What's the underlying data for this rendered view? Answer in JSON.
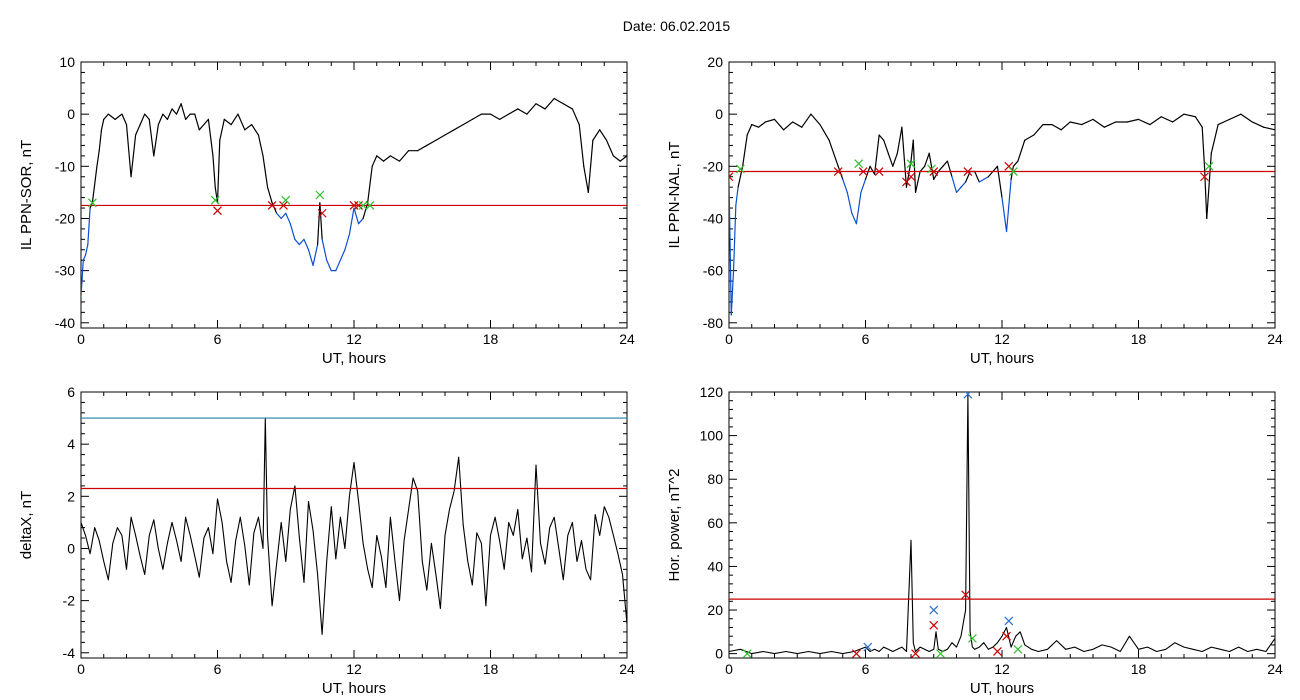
{
  "figure": {
    "title": "Date:  06.02.2015"
  },
  "colors": {
    "trace": "#000000",
    "below": "#0a4fd0",
    "threshold": "#cc0000",
    "threshold_alt": "#1f7fa6",
    "marker_red": "#cc0000",
    "marker_green": "#2ec02e",
    "marker_blue": "#2a6fd0"
  },
  "chart_data": [
    {
      "id": "ppn-sor",
      "type": "line",
      "ylabel": "IL PPN-SOR, nT",
      "xlabel": "UT, hours",
      "xlim": [
        0,
        24
      ],
      "ylim": [
        -41,
        10
      ],
      "xticks": [
        0,
        6,
        12,
        18,
        24
      ],
      "yticks": [
        -40,
        -30,
        -20,
        -10,
        0,
        10
      ],
      "threshold": -17.5,
      "series": [
        {
          "x": [
            0,
            0.1,
            0.2,
            0.3,
            0.4,
            0.5,
            0.7,
            0.8,
            0.9,
            1.0,
            1.2,
            1.5,
            1.8,
            2.0,
            2.2,
            2.4,
            2.6,
            2.8,
            3.0,
            3.2,
            3.4,
            3.6,
            3.8,
            4.0,
            4.2,
            4.4,
            4.6,
            4.8,
            5.0,
            5.2,
            5.4,
            5.6,
            5.8,
            5.9,
            6.0,
            6.1,
            6.3,
            6.6,
            6.9,
            7.2,
            7.5,
            7.8,
            8.0,
            8.2,
            8.4,
            8.6,
            8.8,
            9.0,
            9.2,
            9.4,
            9.6,
            9.8,
            10.0,
            10.2,
            10.4,
            10.5,
            10.6,
            10.8,
            11.0,
            11.2,
            11.4,
            11.6,
            11.8,
            12.0,
            12.2,
            12.4,
            12.6,
            12.8,
            13.0,
            13.3,
            13.6,
            14.0,
            14.4,
            14.8,
            15.2,
            15.6,
            16.0,
            16.4,
            16.8,
            17.2,
            17.6,
            18.0,
            18.4,
            18.8,
            19.2,
            19.6,
            20.0,
            20.4,
            20.8,
            21.2,
            21.6,
            21.9,
            22.1,
            22.3,
            22.5,
            22.8,
            23.1,
            23.4,
            23.7,
            24.0
          ],
          "y": [
            -35,
            -28,
            -27,
            -25,
            -18,
            -17,
            -10,
            -7,
            -3,
            -1,
            0,
            -1,
            0,
            -2,
            -12,
            -4,
            -2,
            0,
            -1,
            -8,
            -2,
            0,
            -1,
            1,
            0,
            2,
            -1,
            0,
            0,
            -3,
            -2,
            -1,
            -8,
            -14,
            -17,
            -5,
            -1,
            -2,
            0,
            -3,
            -2,
            -4,
            -8,
            -14,
            -17,
            -19,
            -20,
            -19,
            -21,
            -24,
            -25,
            -24,
            -26,
            -29,
            -25,
            -17,
            -24,
            -28,
            -30,
            -30,
            -28,
            -26,
            -23,
            -18,
            -21,
            -20,
            -17,
            -10,
            -8,
            -9,
            -8,
            -9,
            -7,
            -7,
            -6,
            -5,
            -4,
            -3,
            -2,
            -1,
            0,
            0,
            -1,
            0,
            1,
            0,
            2,
            1,
            3,
            2,
            1,
            -2,
            -10,
            -15,
            -5,
            -3,
            -5,
            -8,
            -9,
            -8
          ]
        }
      ],
      "markers": [
        {
          "x": 0.5,
          "y": -17,
          "color": "green"
        },
        {
          "x": 5.9,
          "y": -16.5,
          "color": "green"
        },
        {
          "x": 6.0,
          "y": -18.5,
          "color": "red"
        },
        {
          "x": 8.4,
          "y": -17.5,
          "color": "red"
        },
        {
          "x": 8.9,
          "y": -17.5,
          "color": "red"
        },
        {
          "x": 9.0,
          "y": -16.5,
          "color": "green"
        },
        {
          "x": 10.5,
          "y": -15.5,
          "color": "green"
        },
        {
          "x": 10.6,
          "y": -19,
          "color": "red"
        },
        {
          "x": 12.0,
          "y": -17.5,
          "color": "red"
        },
        {
          "x": 12.2,
          "y": -17.5,
          "color": "red"
        },
        {
          "x": 12.4,
          "y": -17.5,
          "color": "green"
        },
        {
          "x": 12.7,
          "y": -17.5,
          "color": "green"
        }
      ]
    },
    {
      "id": "ppn-nal",
      "type": "line",
      "ylabel": "IL PPN-NAL, nT",
      "xlabel": "UT, hours",
      "xlim": [
        0,
        24
      ],
      "ylim": [
        -82,
        20
      ],
      "xticks": [
        0,
        6,
        12,
        18,
        24
      ],
      "yticks": [
        -80,
        -60,
        -40,
        -20,
        0,
        20
      ],
      "threshold": -22,
      "series": [
        {
          "x": [
            0,
            0.1,
            0.2,
            0.3,
            0.4,
            0.6,
            0.8,
            1.0,
            1.3,
            1.6,
            2.0,
            2.4,
            2.8,
            3.2,
            3.6,
            4.0,
            4.4,
            4.8,
            5.0,
            5.2,
            5.4,
            5.6,
            5.8,
            6.0,
            6.2,
            6.4,
            6.6,
            6.8,
            7.0,
            7.2,
            7.4,
            7.6,
            7.8,
            8.0,
            8.1,
            8.2,
            8.4,
            8.6,
            8.8,
            9.0,
            9.2,
            9.4,
            9.6,
            9.8,
            10.0,
            10.2,
            10.4,
            10.6,
            10.8,
            11.0,
            11.2,
            11.4,
            11.6,
            11.8,
            12.0,
            12.2,
            12.4,
            12.5,
            12.7,
            13.0,
            13.4,
            13.8,
            14.2,
            14.6,
            15.0,
            15.5,
            16.0,
            16.5,
            17.0,
            17.5,
            18.0,
            18.5,
            19.0,
            19.5,
            20.0,
            20.5,
            20.8,
            20.9,
            21.0,
            21.2,
            21.5,
            22.0,
            22.5,
            23.0,
            23.5,
            24.0
          ],
          "y": [
            -25,
            -77,
            -60,
            -35,
            -28,
            -20,
            -8,
            -4,
            -5,
            -3,
            -2,
            -6,
            -3,
            -5,
            0,
            -4,
            -10,
            -20,
            -25,
            -30,
            -38,
            -42,
            -30,
            -25,
            -20,
            -23,
            -8,
            -10,
            -15,
            -20,
            -15,
            -5,
            -28,
            -18,
            -10,
            -30,
            -22,
            -20,
            -15,
            -25,
            -22,
            -20,
            -18,
            -24,
            -30,
            -28,
            -26,
            -22,
            -22,
            -26,
            -25,
            -24,
            -22,
            -20,
            -32,
            -45,
            -25,
            -20,
            -18,
            -10,
            -8,
            -4,
            -4,
            -6,
            -3,
            -4,
            -2,
            -5,
            -3,
            -3,
            -2,
            -4,
            -1,
            -3,
            0,
            -1,
            -5,
            -20,
            -40,
            -15,
            -4,
            -2,
            0,
            -3,
            -5,
            -6
          ]
        }
      ],
      "markers": [
        {
          "x": 0.0,
          "y": -24,
          "color": "red"
        },
        {
          "x": 0.5,
          "y": -21,
          "color": "green"
        },
        {
          "x": 4.8,
          "y": -22,
          "color": "red"
        },
        {
          "x": 5.7,
          "y": -19,
          "color": "green"
        },
        {
          "x": 5.9,
          "y": -22,
          "color": "red"
        },
        {
          "x": 6.6,
          "y": -22,
          "color": "red"
        },
        {
          "x": 7.8,
          "y": -26,
          "color": "red"
        },
        {
          "x": 8.0,
          "y": -24,
          "color": "red"
        },
        {
          "x": 8.0,
          "y": -19,
          "color": "green"
        },
        {
          "x": 8.9,
          "y": -21,
          "color": "green"
        },
        {
          "x": 9.0,
          "y": -22,
          "color": "red"
        },
        {
          "x": 10.5,
          "y": -22,
          "color": "red"
        },
        {
          "x": 12.3,
          "y": -20,
          "color": "red"
        },
        {
          "x": 12.5,
          "y": -22,
          "color": "green"
        },
        {
          "x": 20.9,
          "y": -24,
          "color": "red"
        },
        {
          "x": 21.1,
          "y": -20,
          "color": "green"
        }
      ]
    },
    {
      "id": "deltax",
      "type": "line",
      "ylabel": "deltaX, nT",
      "xlabel": "UT, hours",
      "xlim": [
        0,
        24
      ],
      "ylim": [
        -4.2,
        6
      ],
      "xticks": [
        0,
        6,
        12,
        18,
        24
      ],
      "yticks": [
        -4,
        -2,
        0,
        2,
        4,
        6
      ],
      "threshold": 2.3,
      "threshold_alt": 5.0,
      "series": [
        {
          "x": [
            0,
            0.2,
            0.4,
            0.6,
            0.8,
            1.0,
            1.2,
            1.4,
            1.6,
            1.8,
            2.0,
            2.2,
            2.4,
            2.6,
            2.8,
            3.0,
            3.2,
            3.4,
            3.6,
            3.8,
            4.0,
            4.2,
            4.4,
            4.6,
            4.8,
            5.0,
            5.2,
            5.4,
            5.6,
            5.8,
            6.0,
            6.2,
            6.4,
            6.6,
            6.8,
            7.0,
            7.2,
            7.4,
            7.6,
            7.8,
            8.0,
            8.1,
            8.2,
            8.4,
            8.6,
            8.8,
            9.0,
            9.2,
            9.4,
            9.6,
            9.8,
            10.0,
            10.2,
            10.4,
            10.6,
            10.8,
            11.0,
            11.2,
            11.4,
            11.6,
            11.8,
            12.0,
            12.2,
            12.4,
            12.6,
            12.8,
            13.0,
            13.2,
            13.4,
            13.6,
            13.8,
            14.0,
            14.2,
            14.4,
            14.6,
            14.8,
            15.0,
            15.2,
            15.4,
            15.6,
            15.8,
            16.0,
            16.2,
            16.4,
            16.6,
            16.8,
            17.0,
            17.2,
            17.4,
            17.6,
            17.8,
            18.0,
            18.2,
            18.4,
            18.6,
            18.8,
            19.0,
            19.2,
            19.4,
            19.6,
            19.8,
            20.0,
            20.2,
            20.4,
            20.6,
            20.8,
            21.0,
            21.2,
            21.4,
            21.6,
            21.8,
            22.0,
            22.2,
            22.4,
            22.6,
            22.8,
            23.0,
            23.2,
            23.4,
            23.6,
            23.8,
            24.0
          ],
          "y": [
            1.0,
            0.5,
            -0.2,
            0.8,
            0.3,
            -0.5,
            -1.2,
            0.2,
            0.8,
            0.5,
            -0.8,
            1.2,
            0.5,
            -0.3,
            -1.0,
            0.5,
            1.1,
            0.0,
            -0.8,
            0.2,
            1.0,
            0.3,
            -0.5,
            1.2,
            0.5,
            -0.3,
            -1.1,
            0.4,
            0.8,
            -0.2,
            1.9,
            1.0,
            -0.5,
            -1.3,
            0.3,
            1.2,
            0.1,
            -1.4,
            0.6,
            1.2,
            0.0,
            5.0,
            0.5,
            -2.2,
            -0.6,
            1.0,
            -0.5,
            1.5,
            2.4,
            0.4,
            -1.3,
            1.8,
            0.7,
            -1.0,
            -3.3,
            -0.5,
            1.6,
            -0.4,
            1.2,
            0.0,
            2.0,
            3.3,
            1.8,
            0.2,
            -0.8,
            -1.5,
            0.5,
            -0.3,
            -1.5,
            1.2,
            -0.5,
            -2.0,
            0.3,
            1.5,
            2.7,
            2.2,
            -0.5,
            -1.6,
            0.2,
            -1.0,
            -2.3,
            0.5,
            1.5,
            2.2,
            3.5,
            0.9,
            -0.5,
            -1.4,
            0.6,
            0.2,
            -2.2,
            0.5,
            1.2,
            0.3,
            -0.8,
            1.0,
            0.5,
            1.5,
            -0.4,
            0.4,
            -0.9,
            3.2,
            0.2,
            -0.6,
            0.8,
            1.2,
            0.0,
            -1.2,
            0.5,
            1.0,
            -0.5,
            0.3,
            -0.8,
            -1.2,
            1.3,
            0.5,
            1.6,
            1.2,
            0.5,
            -0.2,
            -1.0,
            -2.9
          ]
        }
      ],
      "markers": []
    },
    {
      "id": "hor-power",
      "type": "line",
      "ylabel": "Hor. power, nT^2",
      "xlabel": "UT, hours",
      "xlim": [
        0,
        24
      ],
      "ylim": [
        -2,
        120
      ],
      "xticks": [
        0,
        6,
        12,
        18,
        24
      ],
      "yticks": [
        0,
        20,
        40,
        60,
        80,
        100,
        120
      ],
      "threshold": 25,
      "series": [
        {
          "x": [
            0,
            0.5,
            1.0,
            1.5,
            2.0,
            2.5,
            3.0,
            3.5,
            4.0,
            4.5,
            5.0,
            5.5,
            6.0,
            6.2,
            6.4,
            6.6,
            6.8,
            7.0,
            7.2,
            7.4,
            7.6,
            7.8,
            8.0,
            8.1,
            8.2,
            8.3,
            8.4,
            8.6,
            8.8,
            9.0,
            9.1,
            9.2,
            9.4,
            9.6,
            9.8,
            10.0,
            10.2,
            10.4,
            10.5,
            10.6,
            10.7,
            10.8,
            11.0,
            11.2,
            11.4,
            11.6,
            11.8,
            12.0,
            12.2,
            12.4,
            12.6,
            12.8,
            13.0,
            13.3,
            13.6,
            14.0,
            14.4,
            14.8,
            15.2,
            15.6,
            16.0,
            16.4,
            16.8,
            17.2,
            17.6,
            18.0,
            18.4,
            18.8,
            19.2,
            19.6,
            20.0,
            20.4,
            20.8,
            21.2,
            21.6,
            22.0,
            22.4,
            22.8,
            23.2,
            23.6,
            24.0
          ],
          "y": [
            1,
            2,
            0,
            1,
            0,
            1,
            0,
            1,
            0,
            1,
            0,
            1,
            3,
            1,
            2,
            1,
            3,
            2,
            1,
            2,
            3,
            1,
            52,
            5,
            1,
            2,
            3,
            2,
            1,
            2,
            10,
            2,
            1,
            2,
            5,
            3,
            8,
            20,
            119,
            10,
            3,
            2,
            3,
            5,
            2,
            3,
            5,
            8,
            12,
            3,
            8,
            10,
            4,
            2,
            1,
            2,
            6,
            2,
            3,
            1,
            2,
            4,
            3,
            1,
            8,
            2,
            3,
            1,
            2,
            5,
            3,
            2,
            1,
            3,
            2,
            1,
            3,
            1,
            2,
            1,
            7
          ]
        }
      ],
      "markers": [
        {
          "x": 0.8,
          "y": 0,
          "color": "green"
        },
        {
          "x": 5.6,
          "y": 0,
          "color": "red"
        },
        {
          "x": 6.1,
          "y": 3,
          "color": "blue"
        },
        {
          "x": 8.2,
          "y": 0,
          "color": "red"
        },
        {
          "x": 9.0,
          "y": 20,
          "color": "blue"
        },
        {
          "x": 9.0,
          "y": 13,
          "color": "red"
        },
        {
          "x": 9.3,
          "y": 0,
          "color": "green"
        },
        {
          "x": 10.4,
          "y": 27,
          "color": "red"
        },
        {
          "x": 10.5,
          "y": 119,
          "color": "blue"
        },
        {
          "x": 10.7,
          "y": 7,
          "color": "green"
        },
        {
          "x": 11.8,
          "y": 1,
          "color": "red"
        },
        {
          "x": 12.2,
          "y": 8,
          "color": "red"
        },
        {
          "x": 12.3,
          "y": 15,
          "color": "blue"
        },
        {
          "x": 12.7,
          "y": 2,
          "color": "green"
        }
      ]
    }
  ]
}
